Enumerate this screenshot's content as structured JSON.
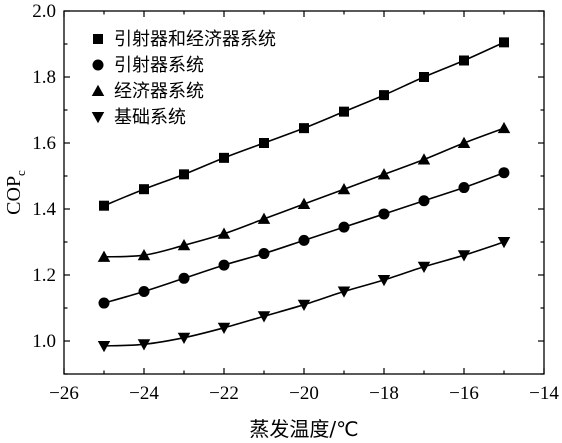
{
  "chart_data": {
    "type": "line",
    "title": "",
    "xlabel": "蒸发温度/℃",
    "ylabel_main": "COP",
    "ylabel_sub": "c",
    "xlim": [
      -26,
      -14
    ],
    "ylim": [
      0.9,
      2.0
    ],
    "xticks": [
      -26,
      -24,
      -22,
      -20,
      -18,
      -16,
      -14
    ],
    "xtick_labels": [
      "−26",
      "−24",
      "−22",
      "−20",
      "−18",
      "−16",
      "−14"
    ],
    "yticks": [
      1.0,
      1.2,
      1.4,
      1.6,
      1.8,
      2.0
    ],
    "ytick_labels": [
      "1.0",
      "1.2",
      "1.4",
      "1.6",
      "1.8",
      "2.0"
    ],
    "grid": false,
    "legend_position": "top-left",
    "x": [
      -25,
      -24,
      -23,
      -22,
      -21,
      -20,
      -19,
      -18,
      -17,
      -16,
      -15
    ],
    "series": [
      {
        "name": "引射器和经济器系统",
        "marker": "square",
        "values": [
          1.41,
          1.46,
          1.505,
          1.555,
          1.6,
          1.645,
          1.695,
          1.745,
          1.8,
          1.85,
          1.905
        ]
      },
      {
        "name": "引射器系统",
        "marker": "circle",
        "values": [
          1.115,
          1.15,
          1.19,
          1.23,
          1.265,
          1.305,
          1.345,
          1.385,
          1.425,
          1.465,
          1.51
        ]
      },
      {
        "name": "经济器系统",
        "marker": "triangle-up",
        "values": [
          1.255,
          1.26,
          1.29,
          1.325,
          1.37,
          1.415,
          1.46,
          1.505,
          1.55,
          1.6,
          1.645
        ]
      },
      {
        "name": "基础系统",
        "marker": "triangle-down",
        "values": [
          0.985,
          0.99,
          1.01,
          1.04,
          1.075,
          1.11,
          1.15,
          1.185,
          1.225,
          1.26,
          1.3
        ]
      }
    ]
  }
}
